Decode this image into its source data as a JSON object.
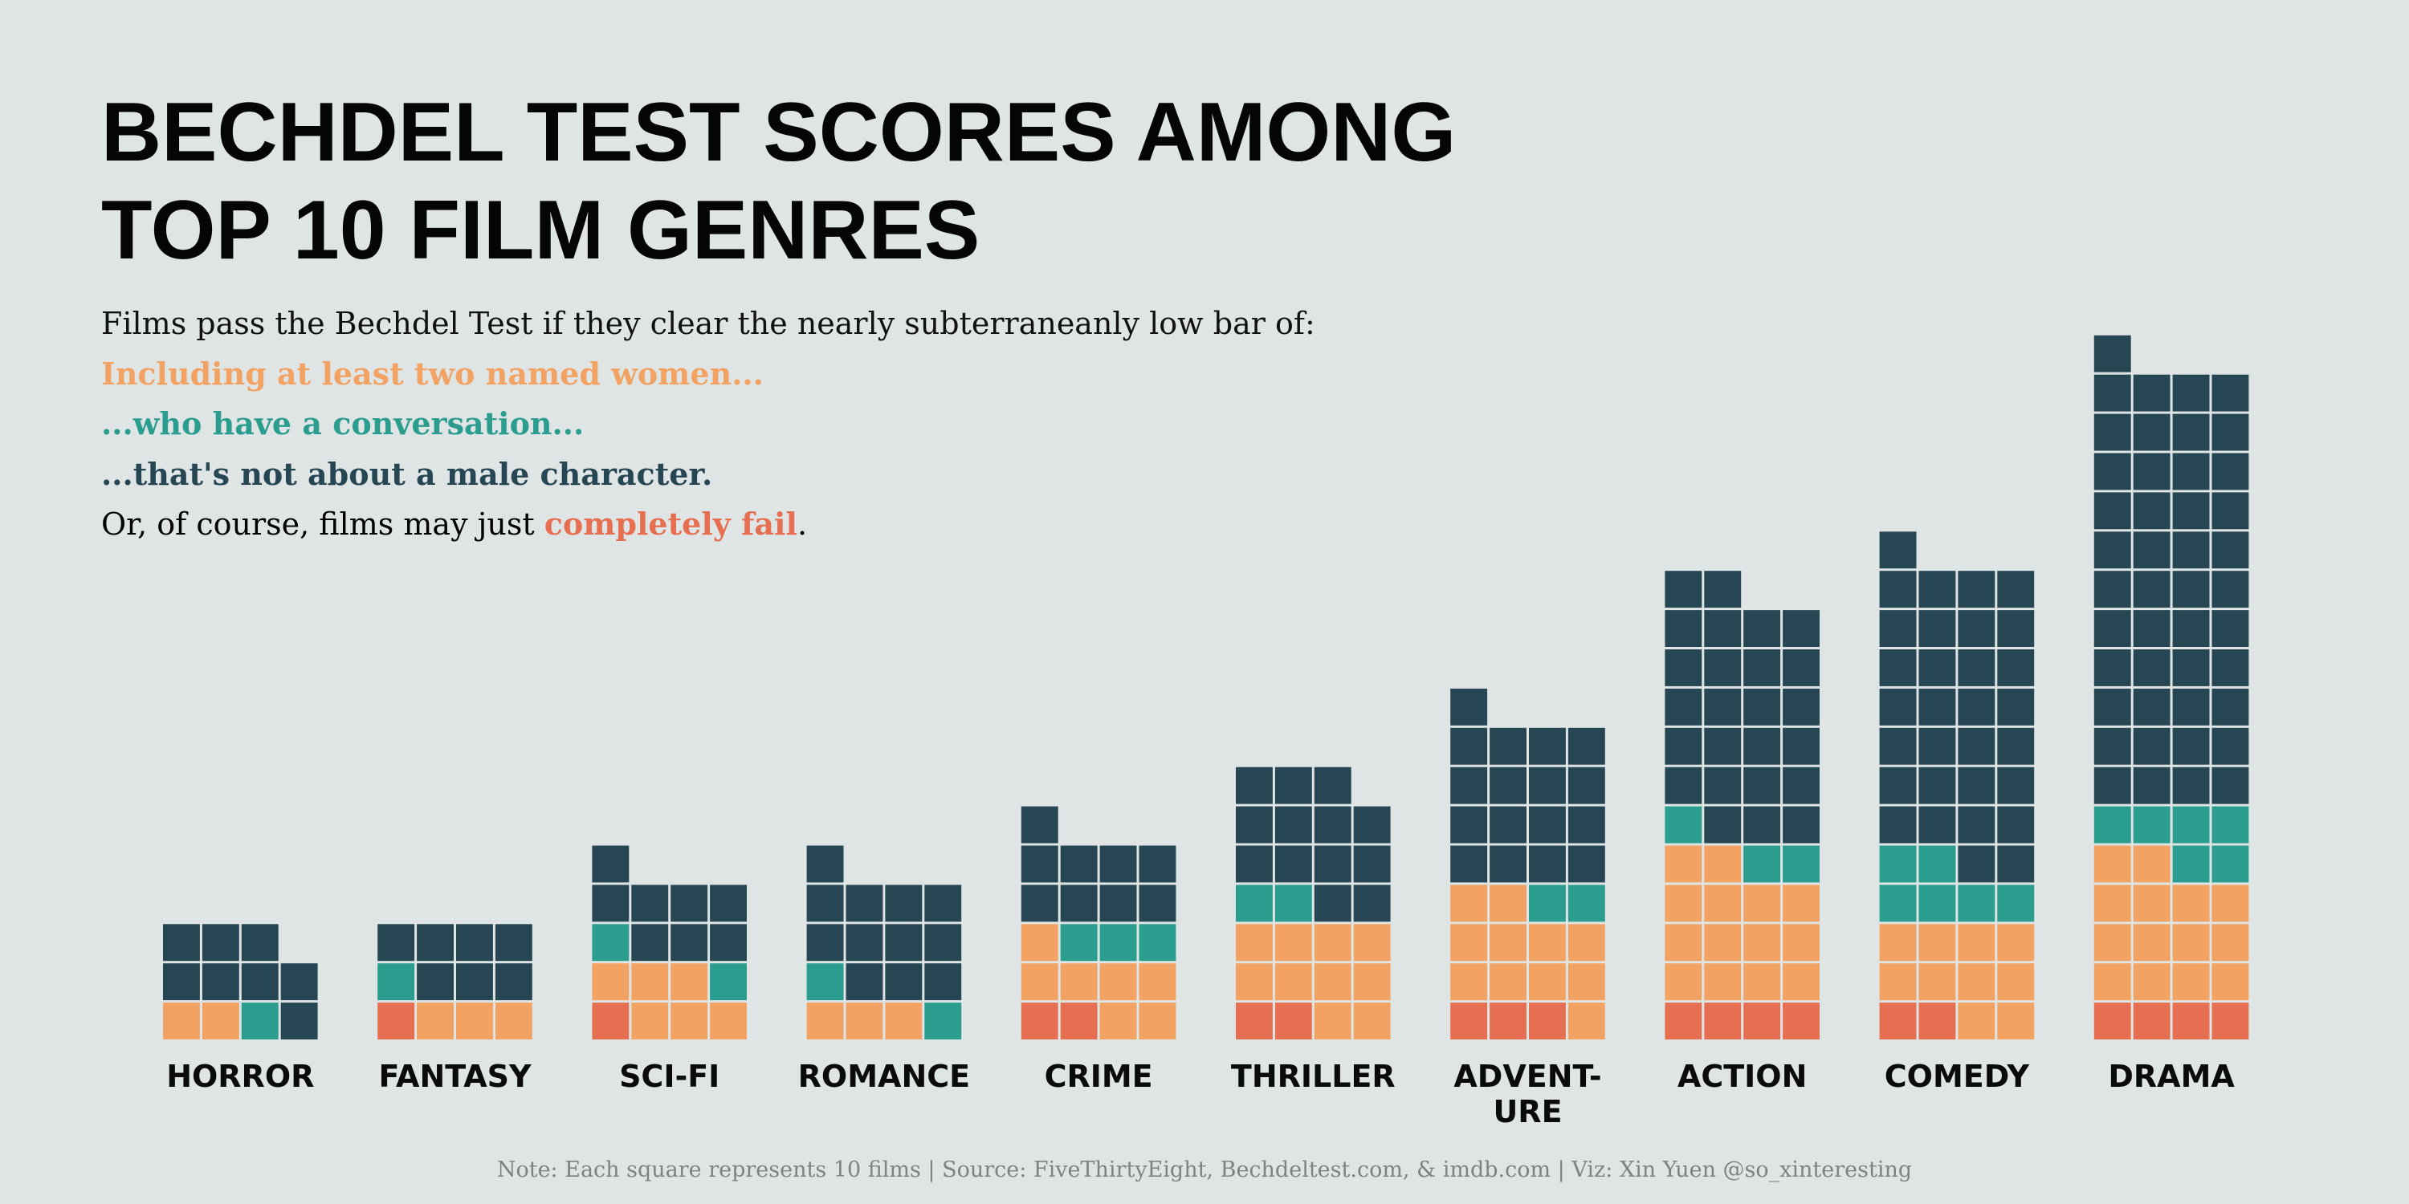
{
  "title_lines": [
    "BECHDEL TEST SCORES AMONG",
    "TOP 10 FILM GENRES"
  ],
  "subtitle": {
    "intro": "Films pass the Bechdel Test if they clear the nearly subterraneanly low bar of:",
    "line1": "Including at least two named women...",
    "line2": "...who have a conversation...",
    "line3": "...that's not about a male character.",
    "fail_prefix": "Or, of course, films may just ",
    "fail_word": "completely fail",
    "fail_suffix": "."
  },
  "footnote": "Note: Each square represents 10 films  |  Source: FiveThirtyEight, Bechdeltest.com, & imdb.com  |  Viz: Xin Yuen @so_xinteresting",
  "colors": {
    "fail": "#e76f51",
    "two_women": "#f2a262",
    "conversation": "#2a9d8f",
    "not_about_man": "#264653",
    "background": "#dfe4e4"
  },
  "chart_data": {
    "type": "waffle",
    "unit": "Each square represents 10 films",
    "categories": [
      "HORROR",
      "FANTASY",
      "SCI-FI",
      "ROMANCE",
      "CRIME",
      "THRILLER",
      "ADVENT-\nURE",
      "ACTION",
      "COMEDY",
      "DRAMA"
    ],
    "series": [
      {
        "key": "fail",
        "values": [
          0,
          1,
          1,
          0,
          2,
          2,
          3,
          4,
          2,
          4
        ]
      },
      {
        "key": "two_women",
        "values": [
          2,
          3,
          6,
          3,
          7,
          10,
          11,
          14,
          10,
          14
        ]
      },
      {
        "key": "conversation",
        "values": [
          1,
          1,
          2,
          2,
          3,
          2,
          2,
          3,
          6,
          6
        ]
      },
      {
        "key": "not_about_man",
        "values": [
          8,
          7,
          8,
          12,
          9,
          13,
          17,
          25,
          31,
          45
        ]
      }
    ],
    "totals_squares": [
      11,
      12,
      17,
      17,
      21,
      27,
      33,
      46,
      49,
      69
    ]
  }
}
